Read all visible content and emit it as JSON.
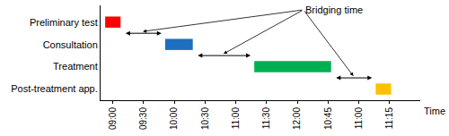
{
  "chart_data": {
    "type": "gantt",
    "orientation": "horizontal",
    "categories": [
      "Preliminary test",
      "Consultation",
      "Treatment",
      "Post-treatment app."
    ],
    "start": [
      -0.25,
      1.7,
      4.6,
      8.55
    ],
    "end": [
      0.25,
      2.6,
      7.1,
      9.05
    ],
    "colors": [
      "#ff0000",
      "#1f6fc0",
      "#00b050",
      "#ffc000"
    ],
    "x_label": "Time",
    "xlim": [
      -0.4,
      10
    ],
    "xticks": [
      {
        "value": 0,
        "label": "09:00"
      },
      {
        "value": 1,
        "label": "09:30"
      },
      {
        "value": 2,
        "label": "10:00"
      },
      {
        "value": 3,
        "label": "10:30"
      },
      {
        "value": 4,
        "label": "11:00"
      },
      {
        "value": 5,
        "label": "11:30"
      },
      {
        "value": 6,
        "label": "12:00"
      },
      {
        "value": 7,
        "label": "10:45"
      },
      {
        "value": 8,
        "label": "11:00"
      },
      {
        "value": 9,
        "label": "11:15"
      }
    ],
    "annotations": [
      {
        "text": "Bridging time"
      }
    ],
    "grid": false,
    "tick_labels": true
  }
}
